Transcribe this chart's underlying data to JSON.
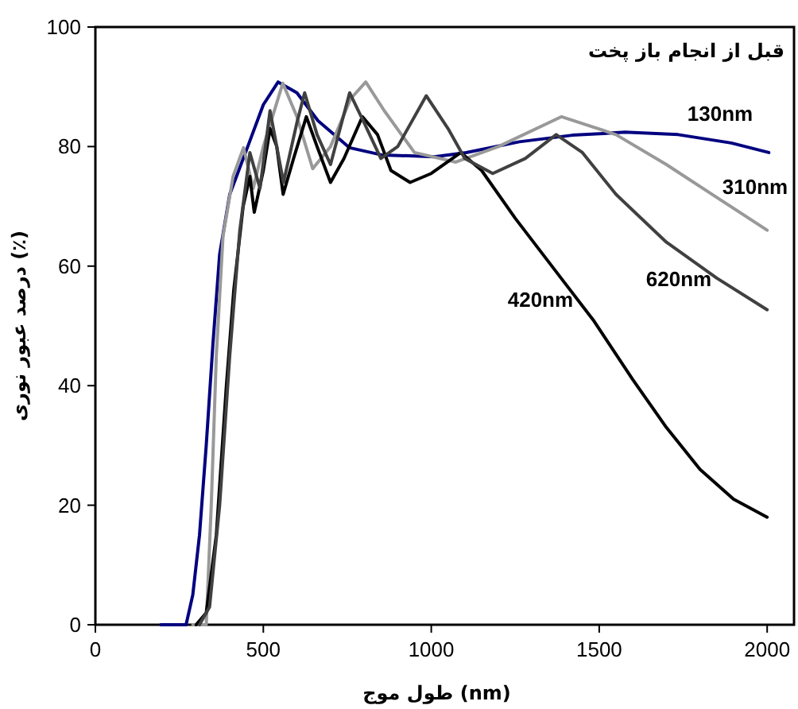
{
  "chart_data": {
    "type": "line",
    "title": "قبل از انجام باز پخت",
    "xlabel": "طول موج (nm)",
    "ylabel": "درصد عبور نوری (٪)",
    "xlim": [
      0,
      2080
    ],
    "ylim": [
      0,
      100
    ],
    "xticks": [
      0,
      500,
      1000,
      1500,
      2000
    ],
    "yticks": [
      0,
      20,
      40,
      60,
      80,
      100
    ],
    "grid": false,
    "marker": "none",
    "line_style": "solid",
    "series": [
      {
        "name": "130nm",
        "color": "#000080",
        "x": [
          195,
          270,
          290,
          310,
          330,
          350,
          370,
          400,
          457,
          500,
          544,
          600,
          663,
          757,
          852,
          1009,
          1104,
          1262,
          1420,
          1577,
          1735,
          1893,
          2005
        ],
        "values": [
          0,
          0,
          5,
          15,
          30,
          47,
          62,
          72,
          80.5,
          87,
          90.8,
          89,
          84.3,
          79.8,
          78.6,
          78.3,
          79,
          80.8,
          81.9,
          82.4,
          82,
          80.6,
          79
        ]
      },
      {
        "name": "310nm",
        "color": "#999999",
        "x": [
          290,
          330,
          345,
          360,
          380,
          410,
          441,
          470,
          500,
          558,
          600,
          647,
          700,
          760,
          805,
          860,
          950,
          1073,
          1200,
          1388,
          1550,
          1700,
          1850,
          2000
        ],
        "values": [
          0,
          0,
          20,
          45,
          65,
          75,
          79.8,
          73,
          80,
          90.6,
          85,
          76.3,
          80,
          88,
          90.8,
          86,
          79,
          77.4,
          80,
          85,
          82,
          77,
          71.5,
          66
        ]
      },
      {
        "name": "420nm",
        "color": "#000000",
        "x": [
          300,
          330,
          360,
          390,
          412,
          440,
          460,
          473,
          500,
          520,
          540,
          559,
          590,
          628,
          660,
          700,
          740,
          795,
          840,
          880,
          937,
          1000,
          1088,
          1150,
          1250,
          1400,
          1482,
          1600,
          1700,
          1800,
          1900,
          2000
        ],
        "values": [
          0,
          2,
          15,
          40,
          56,
          70,
          75,
          69,
          76,
          83,
          80,
          72,
          78,
          85,
          80,
          74,
          78,
          85,
          82,
          76,
          74,
          75.5,
          79,
          76,
          68,
          57,
          51,
          41,
          33,
          26,
          21,
          18
        ]
      },
      {
        "name": "620nm",
        "color": "#404040",
        "x": [
          310,
          340,
          370,
          400,
          430,
          460,
          490,
          520,
          560,
          600,
          623,
          660,
          700,
          757,
          800,
          850,
          900,
          985,
          1050,
          1100,
          1183,
          1280,
          1372,
          1450,
          1550,
          1700,
          1850,
          2000
        ],
        "values": [
          0,
          3,
          20,
          45,
          66,
          79,
          73,
          86,
          74,
          84,
          89,
          82,
          77,
          89,
          84,
          78,
          80,
          88.5,
          83,
          78,
          75.5,
          78,
          82,
          79,
          72,
          64,
          58,
          52.7
        ]
      }
    ]
  }
}
